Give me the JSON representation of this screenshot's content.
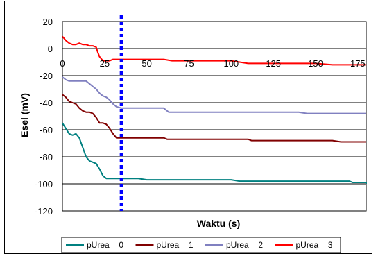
{
  "chart_data": {
    "type": "line",
    "title": "",
    "xlabel": "Waktu (s)",
    "ylabel": "Esel (mV)",
    "xlim": [
      0,
      180
    ],
    "ylim": [
      -120,
      20
    ],
    "xticks": [
      0,
      25,
      50,
      75,
      100,
      125,
      150,
      175
    ],
    "yticks": [
      20,
      0,
      -20,
      -40,
      -60,
      -80,
      -100,
      -120
    ],
    "grid": "horizontal",
    "legend_position": "bottom",
    "reference_line": {
      "x": 35,
      "style": "dotted",
      "color": "#0000FF"
    },
    "series": [
      {
        "name": "pUrea = 0",
        "color": "#008080",
        "points": [
          [
            0,
            -55
          ],
          [
            2,
            -59
          ],
          [
            4,
            -63
          ],
          [
            6,
            -64
          ],
          [
            8,
            -63
          ],
          [
            10,
            -66
          ],
          [
            12,
            -73
          ],
          [
            14,
            -80
          ],
          [
            16,
            -83
          ],
          [
            18,
            -84
          ],
          [
            20,
            -85
          ],
          [
            22,
            -89
          ],
          [
            24,
            -94
          ],
          [
            26,
            -96
          ],
          [
            28,
            -96
          ],
          [
            30,
            -96
          ],
          [
            32,
            -96
          ],
          [
            35,
            -96
          ],
          [
            45,
            -96
          ],
          [
            50,
            -97
          ],
          [
            60,
            -97
          ],
          [
            90,
            -97
          ],
          [
            100,
            -97
          ],
          [
            105,
            -98
          ],
          [
            130,
            -98
          ],
          [
            160,
            -98
          ],
          [
            170,
            -98
          ],
          [
            172,
            -99
          ],
          [
            180,
            -99
          ],
          [
            185,
            -100
          ]
        ]
      },
      {
        "name": "pUrea = 1",
        "color": "#800000",
        "points": [
          [
            0,
            -34
          ],
          [
            2,
            -36
          ],
          [
            4,
            -39
          ],
          [
            6,
            -40
          ],
          [
            8,
            -41
          ],
          [
            10,
            -44
          ],
          [
            12,
            -46
          ],
          [
            14,
            -47
          ],
          [
            16,
            -47
          ],
          [
            18,
            -48
          ],
          [
            20,
            -51
          ],
          [
            22,
            -55
          ],
          [
            24,
            -55
          ],
          [
            26,
            -56
          ],
          [
            28,
            -59
          ],
          [
            30,
            -63
          ],
          [
            32,
            -66
          ],
          [
            35,
            -66
          ],
          [
            50,
            -66
          ],
          [
            60,
            -66
          ],
          [
            62,
            -67
          ],
          [
            100,
            -67
          ],
          [
            110,
            -67
          ],
          [
            112,
            -68
          ],
          [
            130,
            -68
          ],
          [
            160,
            -68
          ],
          [
            165,
            -69
          ],
          [
            185,
            -69
          ]
        ]
      },
      {
        "name": "pUrea = 2",
        "color": "#8080C0",
        "points": [
          [
            0,
            -21
          ],
          [
            2,
            -23
          ],
          [
            4,
            -24
          ],
          [
            6,
            -24
          ],
          [
            14,
            -24
          ],
          [
            16,
            -26
          ],
          [
            18,
            -28
          ],
          [
            20,
            -30
          ],
          [
            22,
            -33
          ],
          [
            24,
            -35
          ],
          [
            26,
            -36
          ],
          [
            28,
            -38
          ],
          [
            30,
            -41
          ],
          [
            32,
            -43
          ],
          [
            35,
            -44
          ],
          [
            50,
            -44
          ],
          [
            60,
            -44
          ],
          [
            63,
            -47
          ],
          [
            100,
            -47
          ],
          [
            140,
            -47
          ],
          [
            145,
            -48
          ],
          [
            185,
            -48
          ]
        ]
      },
      {
        "name": "pUrea = 3",
        "color": "#FF0000",
        "points": [
          [
            0,
            9
          ],
          [
            2,
            6
          ],
          [
            4,
            4
          ],
          [
            6,
            3
          ],
          [
            8,
            3
          ],
          [
            10,
            4
          ],
          [
            12,
            3
          ],
          [
            14,
            3
          ],
          [
            16,
            2
          ],
          [
            18,
            2
          ],
          [
            20,
            1
          ],
          [
            21,
            -3
          ],
          [
            22,
            -6
          ],
          [
            24,
            -9
          ],
          [
            26,
            -9
          ],
          [
            28,
            -9
          ],
          [
            30,
            -8
          ],
          [
            35,
            -8
          ],
          [
            50,
            -8
          ],
          [
            60,
            -8
          ],
          [
            65,
            -9
          ],
          [
            100,
            -9
          ],
          [
            105,
            -10
          ],
          [
            110,
            -11
          ],
          [
            150,
            -11
          ],
          [
            160,
            -12
          ],
          [
            185,
            -12
          ]
        ]
      }
    ]
  }
}
